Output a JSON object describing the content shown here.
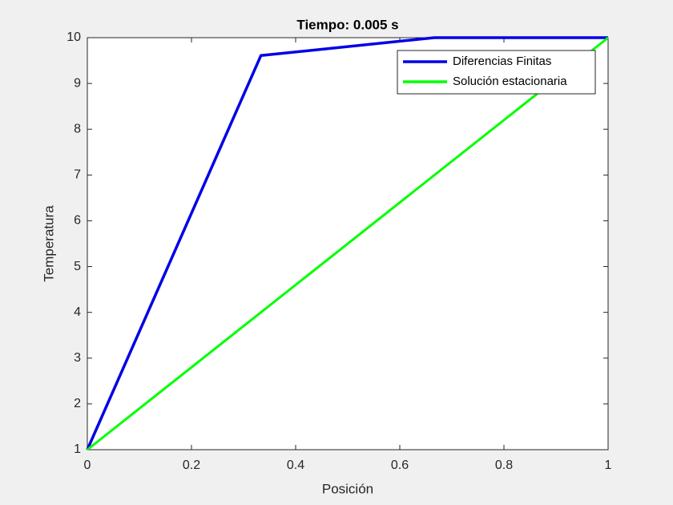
{
  "chart_data": {
    "type": "line",
    "title": "Tiempo: 0.005 s",
    "x_label": "Posición",
    "y_label": "Temperatura",
    "xlim": [
      0,
      1
    ],
    "ylim": [
      1,
      10
    ],
    "xticks": [
      0,
      0.2,
      0.4,
      0.6,
      0.8,
      1
    ],
    "yticks": [
      1,
      2,
      3,
      4,
      5,
      6,
      7,
      8,
      9,
      10
    ],
    "grid": false,
    "legend": "northeast",
    "series": [
      {
        "name": "Diferencias Finitas",
        "color": "#0000e6",
        "x": [
          0,
          0.3333,
          0.6667,
          1
        ],
        "values": [
          1,
          9.61,
          10,
          10
        ]
      },
      {
        "name": "Solución estacionaria",
        "color": "#00ff00",
        "x": [
          0,
          1
        ],
        "values": [
          1,
          10
        ]
      }
    ]
  }
}
